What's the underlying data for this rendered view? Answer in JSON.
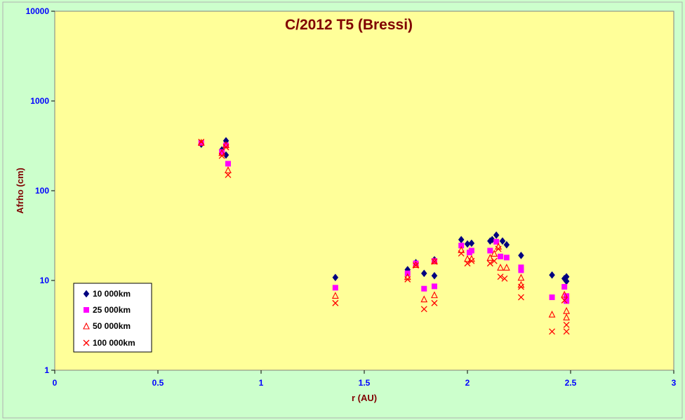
{
  "chart_data": {
    "type": "scatter",
    "title": "C/2012 T5 (Bressi)",
    "xlabel": "r (AU)",
    "ylabel": "Afrho (cm)",
    "x_scale": "linear",
    "y_scale": "log",
    "xlim": [
      0,
      3
    ],
    "ylim": [
      1,
      10000
    ],
    "x_ticks": [
      "0",
      "0.5",
      "1",
      "1.5",
      "2",
      "2.5",
      "3"
    ],
    "y_ticks": [
      "1",
      "10",
      "100",
      "1000",
      "10000"
    ],
    "grid": false,
    "legend_position": "bottom-left",
    "colors": {
      "plot_background": "#ffff99",
      "chart_background": "#ccffcc",
      "title": "#800000",
      "tick_labels": "#0000ff"
    },
    "series": [
      {
        "name": "10 000km",
        "marker": "diamond",
        "color": "#000080",
        "x": [
          0.71,
          0.81,
          0.83,
          0.83,
          1.36,
          1.71,
          1.75,
          1.79,
          1.84,
          1.84,
          1.97,
          2.0,
          2.02,
          2.11,
          2.12,
          2.14,
          2.17,
          2.19,
          2.26,
          2.41,
          2.47,
          2.48,
          2.48
        ],
        "y": [
          330,
          285,
          360,
          250,
          10.8,
          13.2,
          15.8,
          12.0,
          17.0,
          11.3,
          28.5,
          25.5,
          26.0,
          27.5,
          28.5,
          32.0,
          27.5,
          25.0,
          19.0,
          11.5,
          10.5,
          11.0,
          9.8
        ]
      },
      {
        "name": "25 000km",
        "marker": "square",
        "color": "#ff00ff",
        "x": [
          0.71,
          0.81,
          0.83,
          0.84,
          1.36,
          1.71,
          1.75,
          1.79,
          1.84,
          1.84,
          1.97,
          2.01,
          2.02,
          2.11,
          2.14,
          2.16,
          2.19,
          2.26,
          2.26,
          2.41,
          2.47,
          2.48,
          2.48
        ],
        "y": [
          340,
          270,
          320,
          200,
          8.3,
          12.0,
          15.5,
          8.1,
          16.5,
          8.6,
          24.5,
          20.5,
          21.5,
          21.5,
          27.0,
          18.5,
          18.0,
          14.0,
          13.0,
          6.5,
          8.5,
          6.7,
          5.9
        ]
      },
      {
        "name": "50 000km",
        "marker": "triangle",
        "color": "#ff0000",
        "x": [
          0.71,
          0.81,
          0.83,
          0.84,
          1.36,
          1.71,
          1.75,
          1.79,
          1.84,
          1.84,
          1.97,
          2.0,
          2.02,
          2.11,
          2.13,
          2.15,
          2.16,
          2.19,
          2.26,
          2.26,
          2.41,
          2.47,
          2.48,
          2.48
        ],
        "y": [
          345,
          265,
          325,
          170,
          6.8,
          11.0,
          15.0,
          6.2,
          16.5,
          6.9,
          22.0,
          17.5,
          17.5,
          18.0,
          20.0,
          24.0,
          14.0,
          14.0,
          10.8,
          9.0,
          4.2,
          7.0,
          4.6,
          3.9
        ]
      },
      {
        "name": "100 000km",
        "marker": "x",
        "color": "#ff0000",
        "x": [
          0.71,
          0.81,
          0.83,
          0.84,
          1.36,
          1.71,
          1.75,
          1.79,
          1.84,
          1.84,
          1.97,
          2.0,
          2.02,
          2.11,
          2.13,
          2.15,
          2.16,
          2.18,
          2.26,
          2.26,
          2.41,
          2.47,
          2.48,
          2.48
        ],
        "y": [
          350,
          245,
          305,
          150,
          5.6,
          10.3,
          14.7,
          4.8,
          16.2,
          5.6,
          20.0,
          15.5,
          16.5,
          15.5,
          16.5,
          22.5,
          11.0,
          10.5,
          8.5,
          6.5,
          2.7,
          6.0,
          3.2,
          2.7
        ]
      }
    ]
  }
}
